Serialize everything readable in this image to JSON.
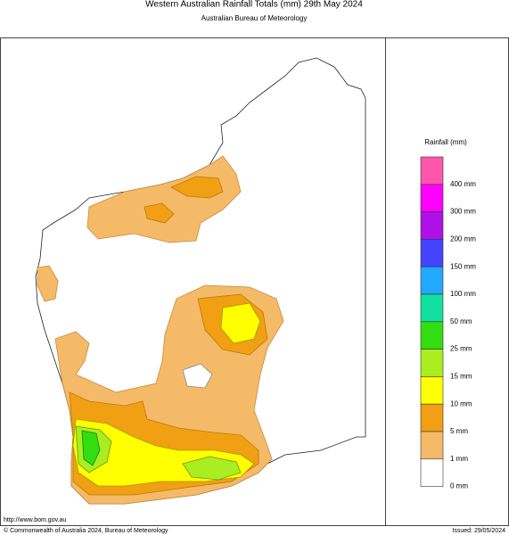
{
  "header": {
    "title": "Western Australian Rainfall Totals (mm) 29th May 2024",
    "subtitle": "Australian Bureau of Meteorology"
  },
  "legend": {
    "title": "Rainfall (mm)",
    "colors": [
      "#ff55aa",
      "#ff00ff",
      "#b010e8",
      "#4444ff",
      "#22a8ff",
      "#11e0a0",
      "#33dd11",
      "#aaee22",
      "#ffff00",
      "#f0a012",
      "#f5ba68",
      "#ffffff"
    ],
    "labels": [
      "400 mm",
      "300 mm",
      "200 mm",
      "150 mm",
      "100 mm",
      "50 mm",
      "25 mm",
      "15 mm",
      "10 mm",
      "5 mm",
      "1 mm",
      "0 mm"
    ]
  },
  "footer": {
    "url": "http://www.bom.gov.au",
    "copyright": "© Commonwealth of Australia 2024, Bureau of Meteorology",
    "issued": "Issued: 29/05/2024"
  }
}
